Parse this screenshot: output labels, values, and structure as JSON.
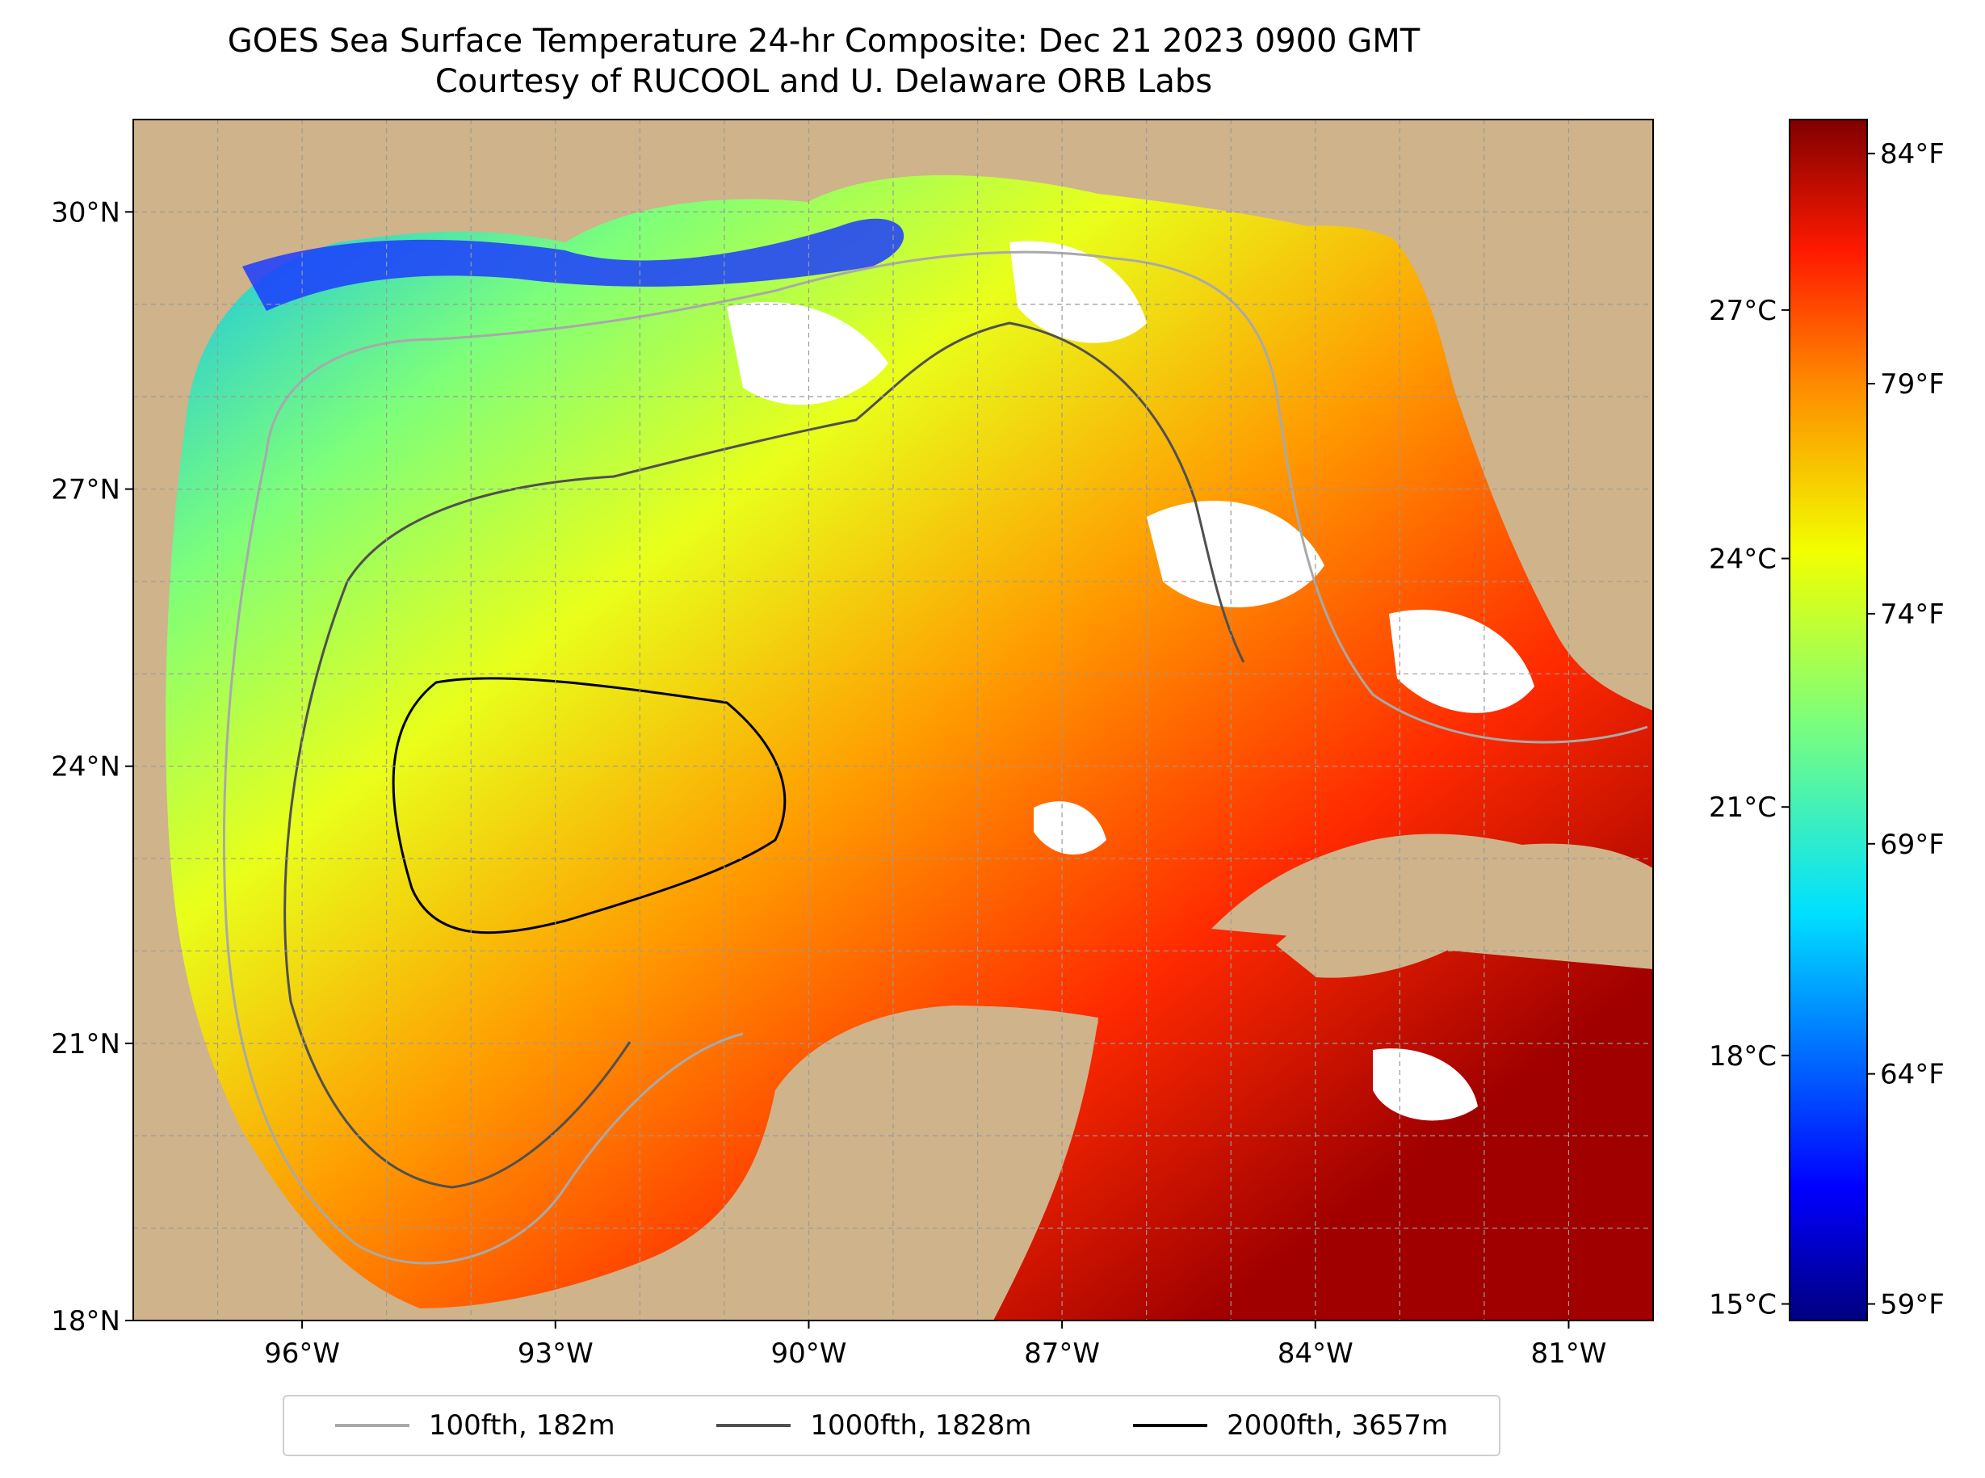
{
  "title": {
    "line1": "GOES Sea Surface Temperature 24-hr Composite: Dec 21 2023 0900 GMT",
    "line2": "Courtesy of RUCOOL and U. Delaware ORB Labs"
  },
  "map": {
    "lon_range": [
      -98.0,
      -80.0
    ],
    "lat_range": [
      18.0,
      31.0
    ],
    "lat_ticks": [
      {
        "value": 18,
        "label": "18°N"
      },
      {
        "value": 21,
        "label": "21°N"
      },
      {
        "value": 24,
        "label": "24°N"
      },
      {
        "value": 27,
        "label": "27°N"
      },
      {
        "value": 30,
        "label": "30°N"
      }
    ],
    "lon_ticks": [
      {
        "value": -96,
        "label": "96°W"
      },
      {
        "value": -93,
        "label": "93°W"
      },
      {
        "value": -90,
        "label": "90°W"
      },
      {
        "value": -87,
        "label": "87°W"
      },
      {
        "value": -84,
        "label": "84°W"
      },
      {
        "value": -81,
        "label": "81°W"
      }
    ],
    "gridlines": true,
    "land_color": "#cfb38b",
    "cloud_color": "#ffffff"
  },
  "colorbar": {
    "colormap": "jet",
    "range_c": [
      14.8,
      29.3
    ],
    "celsius_ticks": [
      {
        "value": 15,
        "label": "15°C"
      },
      {
        "value": 18,
        "label": "18°C"
      },
      {
        "value": 21,
        "label": "21°C"
      },
      {
        "value": 24,
        "label": "24°C"
      },
      {
        "value": 27,
        "label": "27°C"
      }
    ],
    "fahrenheit_ticks": [
      {
        "value": 59,
        "label": "59°F"
      },
      {
        "value": 64,
        "label": "64°F"
      },
      {
        "value": 69,
        "label": "69°F"
      },
      {
        "value": 74,
        "label": "74°F"
      },
      {
        "value": 79,
        "label": "79°F"
      },
      {
        "value": 84,
        "label": "84°F"
      }
    ]
  },
  "legend": {
    "placement": "bottom-center",
    "items": [
      {
        "label": "100fth, 182m",
        "color": "#a9a9a9"
      },
      {
        "label": "1000fth, 1828m",
        "color": "#505050"
      },
      {
        "label": "2000fth, 3657m",
        "color": "#000000"
      }
    ]
  }
}
